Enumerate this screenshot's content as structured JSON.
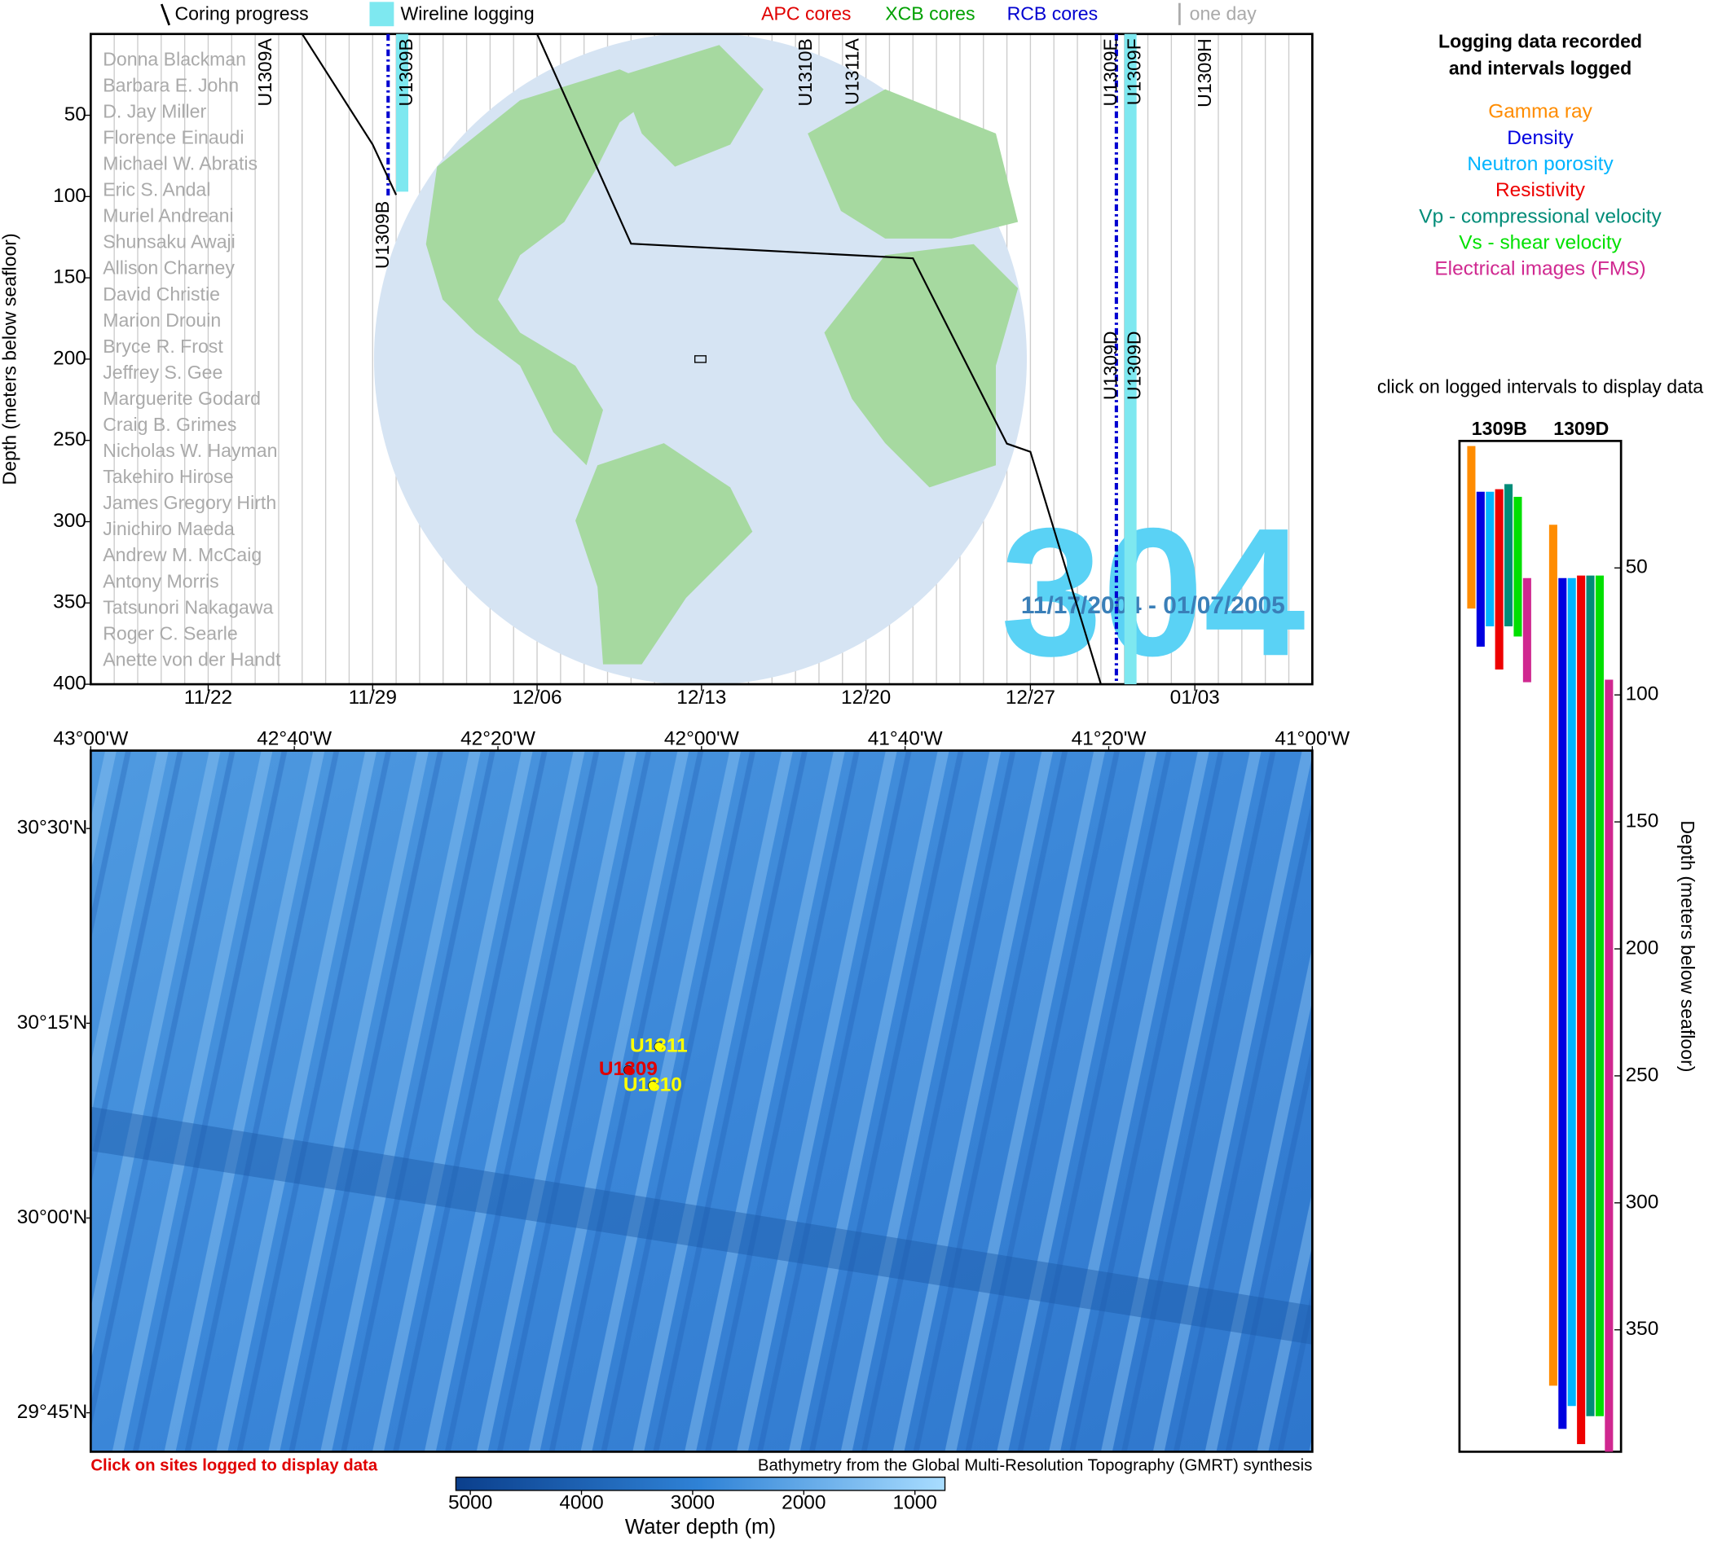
{
  "legend": {
    "coring": "Coring progress",
    "wireline": "Wireline logging",
    "apc": "APC cores",
    "xcb": "XCB cores",
    "rcb": "RCB cores",
    "one_day": "one day"
  },
  "timeline": {
    "y_label": "Depth (meters below seafloor)",
    "ylim": [
      0,
      400
    ],
    "yticks": [
      50,
      100,
      150,
      200,
      250,
      300,
      350,
      400
    ],
    "xlim": [
      "11/17",
      "01/08"
    ],
    "xticks": [
      "11/22",
      "11/29",
      "12/06",
      "12/13",
      "12/20",
      "12/27",
      "01/03"
    ],
    "expedition": "304",
    "dates": "11/17/2004 - 01/07/2005",
    "scientists": [
      "Donna Blackman",
      "Barbara E. John",
      "D. Jay Miller",
      "Florence Einaudi",
      "Michael W. Abratis",
      "Eric S. Andal",
      "Muriel Andreani",
      "Shunsaku Awaji",
      "Allison Charney",
      "David Christie",
      "Marion Drouin",
      "Bryce R. Frost",
      "Jeffrey S. Gee",
      "Marguerite Godard",
      "Craig B. Grimes",
      "Nicholas W. Hayman",
      "Takehiro Hirose",
      "James Gregory Hirth",
      "Jinichiro Maeda",
      "Andrew M. McCaig",
      "Antony Morris",
      "Tatsunori Nakagawa",
      "Roger C. Searle",
      "Anette von der Handt"
    ],
    "holes": [
      {
        "label": "U1309A",
        "date": "11/24",
        "depth": 0
      },
      {
        "label": "U1309B",
        "date": "11/30",
        "depth": 0
      },
      {
        "label": "U1309B",
        "date": "11/29",
        "depth": 100
      },
      {
        "label": "U1310B",
        "date": "12/17",
        "depth": 0
      },
      {
        "label": "U1311A",
        "date": "12/19",
        "depth": 0
      },
      {
        "label": "U1309E",
        "date": "12/30",
        "depth": 0
      },
      {
        "label": "U1309F",
        "date": "12/31",
        "depth": 0
      },
      {
        "label": "U1309D",
        "date": "12/30",
        "depth": 180
      },
      {
        "label": "U1309D",
        "date": "12/31",
        "depth": 180
      },
      {
        "label": "U1309H",
        "date": "01/03",
        "depth": 0
      }
    ],
    "coring_progress": {
      "dates": [
        "11/26",
        "11/29",
        "11/30",
        null,
        "12/06",
        "12/10",
        "12/22",
        "12/26",
        "12/27",
        "12/30"
      ],
      "depths": [
        0,
        68,
        99,
        null,
        0,
        129,
        138,
        252,
        257,
        400
      ]
    },
    "wireline": [
      {
        "date": "11/30",
        "depth": [
          0,
          97
        ]
      },
      {
        "date": "12/31",
        "depth": [
          0,
          400
        ]
      }
    ],
    "rcb_cores": [
      {
        "date": "11/29",
        "depth": [
          0,
          100
        ]
      },
      {
        "date": "12/30",
        "depth": [
          0,
          400
        ]
      }
    ]
  },
  "logging": {
    "title": [
      "Logging data recorded",
      "and intervals logged"
    ],
    "tools": [
      {
        "name": "Gamma ray",
        "color": "#ff8c00"
      },
      {
        "name": "Density",
        "color": "#0000e0"
      },
      {
        "name": "Neutron porosity",
        "color": "#00b4ff"
      },
      {
        "name": "Resistivity",
        "color": "#ee0000"
      },
      {
        "name": "Vp - compressional velocity",
        "color": "#008c78"
      },
      {
        "name": "Vs - shear velocity",
        "color": "#00e000"
      },
      {
        "name": "Electrical images (FMS)",
        "color": "#d02890"
      }
    ],
    "instruction": "click on logged intervals to display data",
    "y_label": "Depth (meters below seafloor)",
    "ylim": [
      0,
      398
    ],
    "yticks": [
      50,
      100,
      150,
      200,
      250,
      300,
      350
    ],
    "holes": [
      {
        "name": "1309B",
        "intervals": [
          [
            2,
            66
          ],
          [
            20,
            81
          ],
          [
            20,
            73
          ],
          [
            19,
            90
          ],
          [
            17,
            73
          ],
          [
            22,
            77
          ],
          [
            54,
            95
          ]
        ]
      },
      {
        "name": "1309D",
        "intervals": [
          [
            33,
            372
          ],
          [
            54,
            389
          ],
          [
            54,
            380
          ],
          [
            53,
            395
          ],
          [
            53,
            384
          ],
          [
            53,
            384
          ],
          [
            94,
            398
          ]
        ]
      }
    ]
  },
  "map": {
    "xlim": [
      -43,
      -41
    ],
    "ylim": [
      29.7,
      30.6
    ],
    "xticks": [
      {
        "value": -43,
        "label": "43°00'W"
      },
      {
        "value": -42.6667,
        "label": "42°40'W"
      },
      {
        "value": -42.3333,
        "label": "42°20'W"
      },
      {
        "value": -42,
        "label": "42°00'W"
      },
      {
        "value": -41.6667,
        "label": "41°40'W"
      },
      {
        "value": -41.3333,
        "label": "41°20'W"
      },
      {
        "value": -41,
        "label": "41°00'W"
      }
    ],
    "yticks": [
      {
        "value": 30.5,
        "label": "30°30'N"
      },
      {
        "value": 30.25,
        "label": "30°15'N"
      },
      {
        "value": 30,
        "label": "30°00'N"
      },
      {
        "value": 29.75,
        "label": "29°45'N"
      }
    ],
    "sites": [
      {
        "label": "U1311",
        "lon": -42.07,
        "lat": 30.22,
        "color": "#ffff00"
      },
      {
        "label": "U1309",
        "lon": -42.12,
        "lat": 30.19,
        "color": "#e00000"
      },
      {
        "label": "U1310",
        "lon": -42.08,
        "lat": 30.17,
        "color": "#ffff00"
      }
    ],
    "click_note": "Click on sites logged to display data",
    "credit": "Bathymetry from the Global Multi-Resolution Topography (GMRT) synthesis",
    "colorbar": {
      "clim": [
        5130,
        730
      ],
      "ticks": [
        5000,
        4000,
        3000,
        2000,
        1000
      ],
      "label": "Water depth (m)"
    }
  }
}
